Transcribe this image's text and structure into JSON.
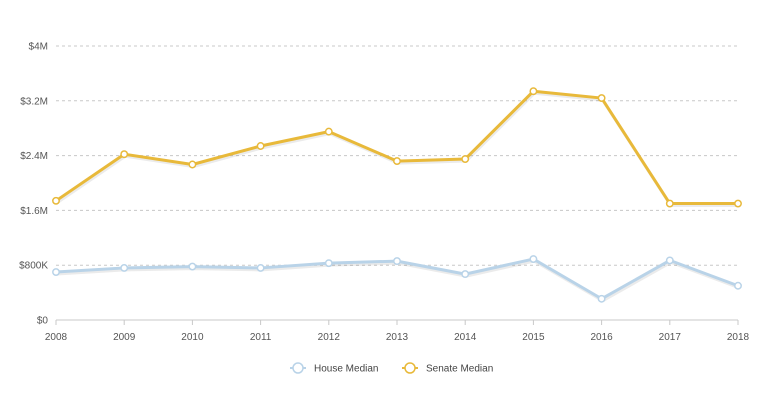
{
  "chart_data": {
    "type": "line",
    "x": [
      "2008",
      "2009",
      "2010",
      "2011",
      "2012",
      "2013",
      "2014",
      "2015",
      "2016",
      "2017",
      "2018"
    ],
    "ylim": [
      0,
      4000000
    ],
    "yticks": [
      {
        "value": 0,
        "label": "$0"
      },
      {
        "value": 800000,
        "label": "$800K"
      },
      {
        "value": 1600000,
        "label": "$1.6M"
      },
      {
        "value": 2400000,
        "label": "$2.4M"
      },
      {
        "value": 3200000,
        "label": "$3.2M"
      },
      {
        "value": 4000000,
        "label": "$4M"
      }
    ],
    "grid": true,
    "legend_position": "bottom-center",
    "series": [
      {
        "name": "House Median",
        "color": "#b9d3e8",
        "values": [
          700000,
          760000,
          780000,
          760000,
          830000,
          860000,
          670000,
          890000,
          310000,
          870000,
          500000
        ]
      },
      {
        "name": "Senate Median",
        "color": "#e8b93a",
        "values": [
          1740000,
          2420000,
          2270000,
          2540000,
          2750000,
          2320000,
          2350000,
          3340000,
          3240000,
          1700000,
          1700000
        ]
      }
    ]
  }
}
